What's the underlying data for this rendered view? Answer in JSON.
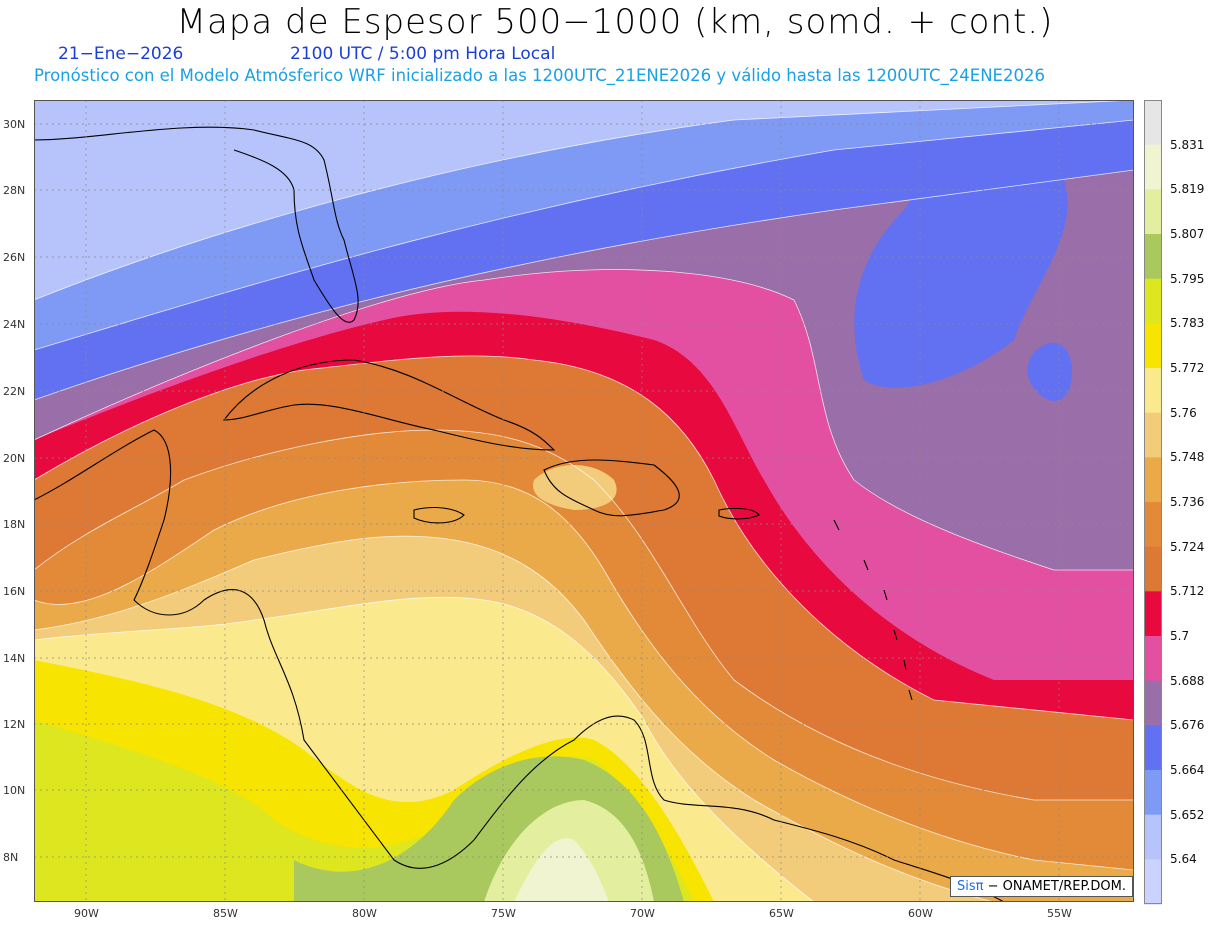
{
  "title": "Mapa de Espesor 500−1000 (km, somd. + cont.)",
  "date": "21−Ene−2026",
  "time": "2100 UTC / 5:00 pm Hora Local",
  "info": "Pronóstico con el Modelo Atmósferico WRF inicializado a las 1200UTC_21ENE2026 y válido hasta las  1200UTC_24ENE2026",
  "credit": {
    "brand": "Sisπ",
    "text": " − ONAMET/REP.DOM."
  },
  "lat_labels": [
    "30N",
    "28N",
    "26N",
    "24N",
    "22N",
    "20N",
    "18N",
    "16N",
    "14N",
    "12N",
    "10N",
    "8N"
  ],
  "lon_labels": [
    "90W",
    "85W",
    "80W",
    "75W",
    "70W",
    "65W",
    "60W",
    "55W"
  ],
  "legend": {
    "values": [
      "5.831",
      "5.819",
      "5.807",
      "5.795",
      "5.783",
      "5.772",
      "5.76",
      "5.748",
      "5.736",
      "5.724",
      "5.712",
      "5.7",
      "5.688",
      "5.676",
      "5.664",
      "5.652",
      "5.64"
    ],
    "colors": [
      "#e6e6e6",
      "#f1f4d0",
      "#e3ef9f",
      "#a9c95e",
      "#dde61e",
      "#f7e400",
      "#fbe98d",
      "#f2cc7a",
      "#ebaa4a",
      "#e38a39",
      "#dd7835",
      "#e8093f",
      "#e450a1",
      "#9a6ea8",
      "#6271f2",
      "#7f9af5",
      "#b7c4fb",
      "#c9d3fd"
    ]
  },
  "colors": {
    "sea_gulf": "#b7c4fb",
    "atlantic": "#9a6ea8"
  }
}
